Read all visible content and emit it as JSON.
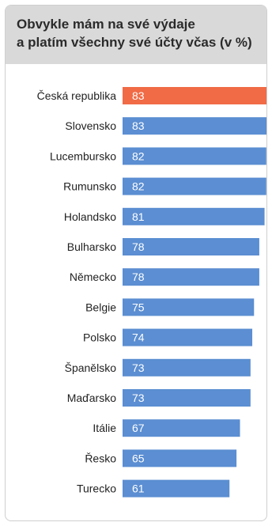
{
  "chart_data": {
    "type": "bar",
    "orientation": "horizontal",
    "title": "Obvykle mám na své výdaje\na platím všechny své účty včas (v %)",
    "categories": [
      "Česká republika",
      "Slovensko",
      "Lucembursko",
      "Rumunsko",
      "Holandsko",
      "Bulharsko",
      "Německo",
      "Belgie",
      "Polsko",
      "Španělsko",
      "Maďarsko",
      "Itálie",
      "Řesko",
      "Turecko"
    ],
    "values": [
      83,
      83,
      82,
      82,
      81,
      78,
      78,
      75,
      74,
      73,
      73,
      67,
      65,
      61
    ],
    "highlight_index": 0,
    "colors": {
      "bar": "#5b8ed2",
      "highlight": "#f06b46",
      "header_bg": "#d9d9d9"
    },
    "xlim": [
      0,
      83
    ],
    "grid": false,
    "legend": "none"
  }
}
